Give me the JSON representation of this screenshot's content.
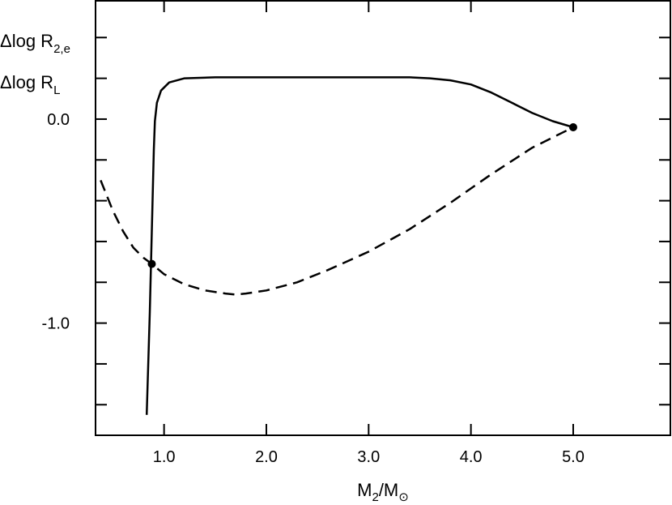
{
  "chart_data": {
    "type": "line",
    "title": "",
    "xlabel": {
      "main": "M",
      "sub": "2",
      "sep": "/M",
      "sun_symbol": "⊙"
    },
    "ylabel": "",
    "xlim": [
      0.33,
      5.95
    ],
    "ylim": [
      -1.55,
      0.58
    ],
    "x_ticks": [
      1.0,
      2.0,
      3.0,
      4.0,
      5.0
    ],
    "x_tick_labels": [
      "1.0",
      "2.0",
      "3.0",
      "4.0",
      "5.0"
    ],
    "y_ticks": [
      0.0,
      -1.0
    ],
    "y_tick_labels": [
      "0.0",
      "-1.0"
    ],
    "y_minor_ticks": [
      0.4,
      0.2,
      -0.2,
      -0.4,
      -0.6,
      -0.8,
      -1.2,
      -1.4
    ],
    "grid": false,
    "legend": [
      {
        "main": "Δlog R",
        "sub": "2,e",
        "style": "solid"
      },
      {
        "main": "Δlog R",
        "sub": "L",
        "style": "dashed"
      }
    ],
    "series": [
      {
        "style": "solid",
        "x": [
          0.83,
          0.86,
          0.88,
          0.9,
          0.91,
          0.93,
          0.97,
          1.05,
          1.2,
          1.5,
          2.0,
          2.5,
          3.0,
          3.4,
          3.6,
          3.8,
          4.0,
          4.2,
          4.4,
          4.6,
          4.8,
          5.0
        ],
        "y": [
          -1.45,
          -0.95,
          -0.55,
          -0.15,
          -0.01,
          0.08,
          0.14,
          0.18,
          0.2,
          0.205,
          0.205,
          0.205,
          0.205,
          0.205,
          0.2,
          0.19,
          0.17,
          0.13,
          0.08,
          0.03,
          -0.01,
          -0.04
        ]
      },
      {
        "style": "dashed",
        "x": [
          0.38,
          0.5,
          0.6,
          0.7,
          0.8,
          0.88,
          1.0,
          1.2,
          1.4,
          1.6,
          1.7,
          1.8,
          2.0,
          2.3,
          2.6,
          3.0,
          3.4,
          3.8,
          4.2,
          4.6,
          5.0
        ],
        "y": [
          -0.3,
          -0.45,
          -0.55,
          -0.63,
          -0.68,
          -0.71,
          -0.76,
          -0.81,
          -0.84,
          -0.855,
          -0.86,
          -0.855,
          -0.84,
          -0.8,
          -0.74,
          -0.65,
          -0.54,
          -0.41,
          -0.27,
          -0.14,
          -0.04
        ]
      }
    ],
    "markers": [
      {
        "x": 0.88,
        "y": -0.71
      },
      {
        "x": 5.0,
        "y": -0.04
      }
    ]
  }
}
